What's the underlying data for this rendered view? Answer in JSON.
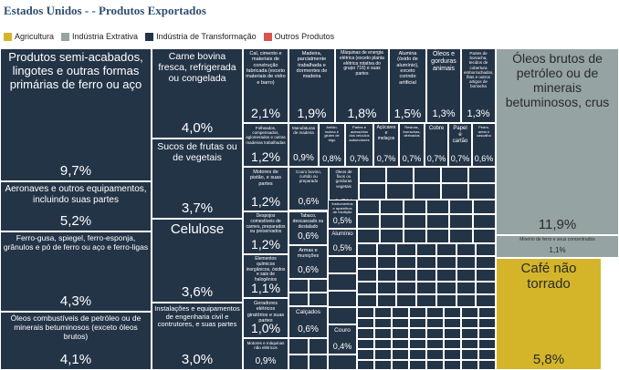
{
  "chart_data": {
    "type": "treemap",
    "title": "Estados Unidos - - Produtos Exportados",
    "legend": [
      {
        "name": "Agricultura",
        "color": "#d4b52a"
      },
      {
        "name": "Indústria Extrativa",
        "color": "#95a3a2"
      },
      {
        "name": "Indústria de Transformação",
        "color": "#243447"
      },
      {
        "name": "Outros Produtos",
        "color": "#d9534f"
      }
    ],
    "cells": [
      {
        "label": "Produtos semi-acabados, lingotes e outras formas primárias de ferro ou aço",
        "value": "9,7%",
        "sector": "Indústria de Transformação"
      },
      {
        "label": "Aeronaves e outros equipamentos, incluindo suas partes",
        "value": "5,2%",
        "sector": "Indústria de Transformação"
      },
      {
        "label": "Ferro-gusa, spiegel, ferro-esponja, grânulos e pó de ferro ou aço e ferro-ligas",
        "value": "4,3%",
        "sector": "Indústria de Transformação"
      },
      {
        "label": "Óleos combustíveis de petróleo ou de minerais betuminosos (exceto óleos brutos)",
        "value": "4,1%",
        "sector": "Indústria de Transformação"
      },
      {
        "label": "Carne bovina fresca, refrigerada ou congelada",
        "value": "4,0%",
        "sector": "Indústria de Transformação"
      },
      {
        "label": "Sucos de frutas ou de vegetais",
        "value": "3,7%",
        "sector": "Indústria de Transformação"
      },
      {
        "label": "Celulose",
        "value": "3,6%",
        "sector": "Indústria de Transformação"
      },
      {
        "label": "Instalações e equipamentos de engenharia civil e contrutores, e suas partes",
        "value": "3,0%",
        "sector": "Indústria de Transformação"
      },
      {
        "label": "Cal, cimento e materiais de construção fabricada (exceto materiais de vidro e barro)",
        "value": "2,1%",
        "sector": "Indústria de Transformação"
      },
      {
        "label": "Madeira, parcialmente trabalhada e dormentes de madeira",
        "value": "1,9%",
        "sector": "Indústria de Transformação"
      },
      {
        "label": "Máquinas de energia elétrica (exceto planta elétrica rotativa do grupo 716) e suas partes",
        "value": "1,8%",
        "sector": "Indústria de Transformação"
      },
      {
        "label": "Alumina (óxido de alumínio), exceto corindo artificial",
        "value": "1,5%",
        "sector": "Indústria de Transformação"
      },
      {
        "label": "Óleos e gorduras animais",
        "value": "1,3%",
        "sector": "Indústria de Transformação"
      },
      {
        "label": "Partes de borracha, tecidos de cobertura emborrachados, fitas e outros artigos de borracha",
        "value": "1,3%",
        "sector": "Indústria de Transformação"
      },
      {
        "label": "Folheados, compensados, aglomerados e outras madeiras trabalhadas",
        "value": "1,2%",
        "sector": "Indústria de Transformação"
      },
      {
        "label": "Manufaturas de madeira",
        "value": "0,9%",
        "sector": "Indústria de Transformação"
      },
      {
        "label": "Amido, inulina e glúten de trigo",
        "value": "0,8%",
        "sector": "Indústria de Transformação"
      },
      {
        "label": "Partes e acessórios dos veículos automotores",
        "value": "0,7%",
        "sector": "Indústria de Transformação"
      },
      {
        "label": "Açúcares e melaços",
        "value": "0,7%",
        "sector": "Indústria de Transformação"
      },
      {
        "label": "Resinas, borrachas, derivados",
        "value": "0,7%",
        "sector": "Indústria de Transformação"
      },
      {
        "label": "Cobre",
        "value": "0,7%",
        "sector": "Indústria de Transformação"
      },
      {
        "label": "Papel e cartão",
        "value": "0,7%",
        "sector": "Indústria de Transformação"
      },
      {
        "label": "Pedra, areia e cascalho",
        "value": "0,6%",
        "sector": "Indústria de Transformação"
      },
      {
        "label": "Motores de pistão, e suas partes",
        "value": "1,2%",
        "sector": "Indústria de Transformação"
      },
      {
        "label": "Couro bovino, curtido ou preparado",
        "value": "0,6%",
        "sector": "Indústria de Transformação"
      },
      {
        "label": "Óleos de fixos ou gorduras vegetais",
        "value": "0,5%",
        "sector": "Indústria de Transformação"
      },
      {
        "label": "Despojos comestíveis de carnes, preparados ou preservados",
        "value": "1,2%",
        "sector": "Indústria de Transformação"
      },
      {
        "label": "Tabaco, descascado ou destalado",
        "value": "0,6%",
        "sector": "Indústria de Transformação"
      },
      {
        "label": "Instrumentos e aparelhos de medição",
        "value": "0,5%",
        "sector": "Indústria de Transformação"
      },
      {
        "label": "Alumínio",
        "value": "0,5%",
        "sector": "Indústria de Transformação"
      },
      {
        "label": "Elementos químicos inorgânicos, óxidos e sais de halogênios",
        "value": "1,1%",
        "sector": "Indústria de Transformação"
      },
      {
        "label": "Armas e munições",
        "value": "0,6%",
        "sector": "Indústria de Transformação"
      },
      {
        "label": "Geradores elétricos giratórios e suas partes",
        "value": "1,0%",
        "sector": "Indústria de Transformação"
      },
      {
        "label": "Motores e máquinas não elétricos",
        "value": "0,9%",
        "sector": "Indústria de Transformação"
      },
      {
        "label": "Calçados",
        "value": "0,6%",
        "sector": "Indústria de Transformação"
      },
      {
        "label": "Couro",
        "value": "0,4%",
        "sector": "Indústria de Transformação"
      },
      {
        "label": "Óleos brutos de petróleo ou de minerais betuminosos, crus",
        "value": "11,9%",
        "sector": "Indústria Extrativa"
      },
      {
        "label": "Minério de ferro e seus concentrados",
        "value": "1,1%",
        "sector": "Indústria Extrativa"
      },
      {
        "label": "Café não torrado",
        "value": "5,8%",
        "sector": "Agricultura"
      }
    ]
  }
}
